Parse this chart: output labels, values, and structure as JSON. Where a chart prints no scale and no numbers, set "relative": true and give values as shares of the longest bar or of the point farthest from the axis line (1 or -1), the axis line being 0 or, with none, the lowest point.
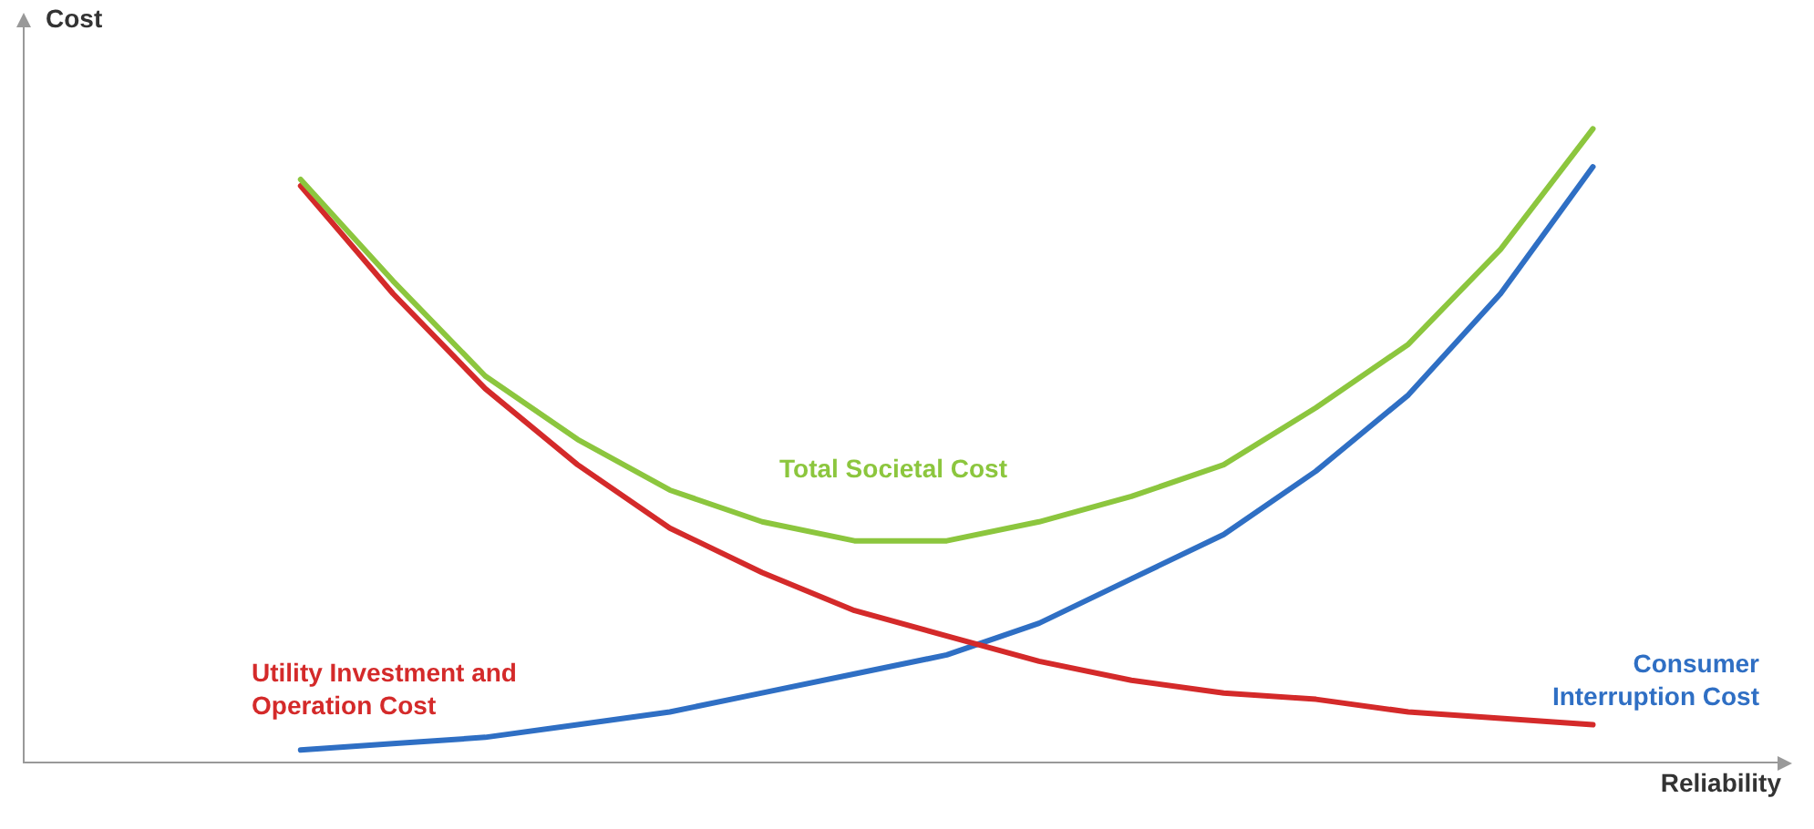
{
  "chart_data": {
    "type": "line",
    "relative": true,
    "xlabel": "Reliability",
    "ylabel": "Cost",
    "grid": false,
    "legend": false,
    "marker": "none",
    "line_style": "solid",
    "categories": [
      null,
      null,
      null,
      null,
      null,
      null,
      null,
      null,
      null,
      null,
      null,
      null,
      null,
      null,
      null,
      null,
      null,
      null,
      null,
      null
    ],
    "series": [
      {
        "name": "Total Societal Cost",
        "color": "#8cc63e",
        "values": [
          null,
          null,
          null,
          0.92,
          0.76,
          0.61,
          0.51,
          0.43,
          0.38,
          0.35,
          0.35,
          0.38,
          0.42,
          0.47,
          0.56,
          0.66,
          0.81,
          1,
          null,
          null
        ]
      },
      {
        "name": "Utility Investment and Operation Cost",
        "color": "#d42a2a",
        "values": [
          null,
          null,
          null,
          0.91,
          0.74,
          0.59,
          0.47,
          0.37,
          0.3,
          0.24,
          0.2,
          0.16,
          0.13,
          0.11,
          0.1,
          0.08,
          0.07,
          0.06,
          null,
          null
        ]
      },
      {
        "name": "Consumer Interruption Cost",
        "color": "#2f6fc4",
        "values": [
          null,
          null,
          null,
          0.02,
          0.03,
          0.04,
          0.06,
          0.08,
          0.11,
          0.14,
          0.17,
          0.22,
          0.29,
          0.36,
          0.46,
          0.58,
          0.74,
          0.94,
          null,
          null
        ]
      }
    ]
  }
}
